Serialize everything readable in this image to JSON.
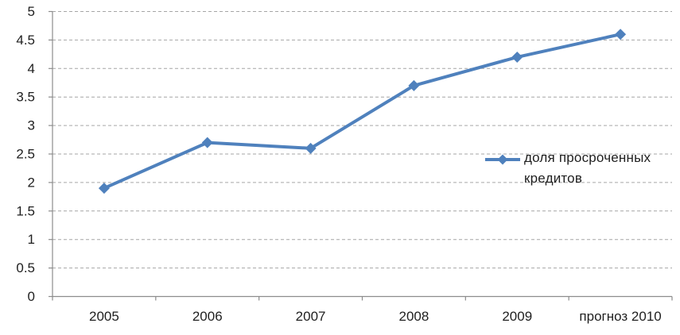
{
  "chart_data": {
    "type": "line",
    "categories": [
      "2005",
      "2006",
      "2007",
      "2008",
      "2009",
      "прогноз 2010"
    ],
    "series": [
      {
        "name": "доля просроченных кредитов",
        "values": [
          1.9,
          2.7,
          2.6,
          3.7,
          4.2,
          4.6
        ]
      }
    ],
    "title": "",
    "xlabel": "",
    "ylabel": "",
    "ylim": [
      0,
      5
    ],
    "ytick_step": 0.5,
    "ytick_labels": [
      "0",
      "0.5",
      "1",
      "1.5",
      "2",
      "2.5",
      "3",
      "3.5",
      "4",
      "4.5",
      "5"
    ],
    "grid": "horizontal-dashed",
    "legend_position": "inside-right",
    "marker": "diamond",
    "colors": {
      "series": "#4f81bd",
      "gridline": "#a6a6a6",
      "axis": "#8c8c8c",
      "text": "#1f1f1f",
      "background": "#ffffff"
    }
  }
}
